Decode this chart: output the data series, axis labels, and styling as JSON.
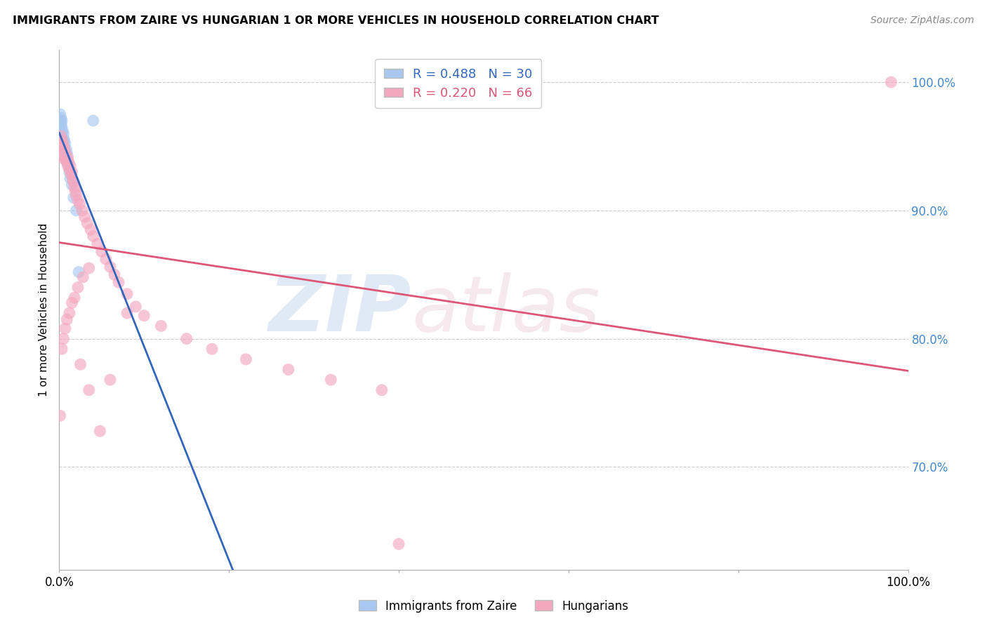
{
  "title": "IMMIGRANTS FROM ZAIRE VS HUNGARIAN 1 OR MORE VEHICLES IN HOUSEHOLD CORRELATION CHART",
  "source": "Source: ZipAtlas.com",
  "ylabel": "1 or more Vehicles in Household",
  "blue_R": 0.488,
  "blue_N": 30,
  "pink_R": 0.22,
  "pink_N": 66,
  "blue_color": "#a8c8f0",
  "pink_color": "#f4a8c0",
  "blue_line_color": "#3366bb",
  "pink_line_color": "#dd5577",
  "xlim": [
    0.0,
    1.0
  ],
  "ylim": [
    0.62,
    1.025
  ],
  "ytick_positions": [
    0.7,
    0.8,
    0.9,
    1.0
  ],
  "ytick_labels": [
    "70.0%",
    "80.0%",
    "90.0%",
    "100.0%"
  ],
  "blue_points_x": [
    0.001,
    0.001,
    0.002,
    0.002,
    0.002,
    0.003,
    0.003,
    0.003,
    0.004,
    0.004,
    0.005,
    0.005,
    0.005,
    0.006,
    0.006,
    0.007,
    0.007,
    0.008,
    0.008,
    0.009,
    0.009,
    0.01,
    0.011,
    0.012,
    0.013,
    0.015,
    0.017,
    0.02,
    0.023,
    0.04
  ],
  "blue_points_y": [
    0.975,
    0.97,
    0.972,
    0.968,
    0.965,
    0.97,
    0.965,
    0.96,
    0.962,
    0.955,
    0.96,
    0.955,
    0.95,
    0.955,
    0.948,
    0.952,
    0.945,
    0.948,
    0.94,
    0.945,
    0.938,
    0.94,
    0.935,
    0.93,
    0.925,
    0.92,
    0.91,
    0.9,
    0.852,
    0.97
  ],
  "pink_points_x": [
    0.001,
    0.002,
    0.002,
    0.003,
    0.003,
    0.004,
    0.004,
    0.005,
    0.005,
    0.006,
    0.006,
    0.007,
    0.008,
    0.009,
    0.01,
    0.01,
    0.011,
    0.012,
    0.013,
    0.014,
    0.015,
    0.016,
    0.017,
    0.018,
    0.019,
    0.02,
    0.022,
    0.024,
    0.027,
    0.03,
    0.033,
    0.037,
    0.04,
    0.045,
    0.05,
    0.055,
    0.06,
    0.065,
    0.07,
    0.08,
    0.09,
    0.1,
    0.12,
    0.15,
    0.18,
    0.22,
    0.27,
    0.32,
    0.38,
    0.98,
    0.003,
    0.005,
    0.007,
    0.009,
    0.012,
    0.015,
    0.018,
    0.022,
    0.028,
    0.035,
    0.025,
    0.035,
    0.048,
    0.06,
    0.08,
    0.4
  ],
  "pink_points_y": [
    0.74,
    0.958,
    0.95,
    0.955,
    0.948,
    0.953,
    0.946,
    0.95,
    0.942,
    0.948,
    0.94,
    0.945,
    0.94,
    0.938,
    0.942,
    0.935,
    0.938,
    0.932,
    0.935,
    0.928,
    0.93,
    0.924,
    0.922,
    0.918,
    0.915,
    0.912,
    0.908,
    0.905,
    0.9,
    0.895,
    0.89,
    0.885,
    0.88,
    0.874,
    0.868,
    0.862,
    0.856,
    0.85,
    0.844,
    0.835,
    0.825,
    0.818,
    0.81,
    0.8,
    0.792,
    0.784,
    0.776,
    0.768,
    0.76,
    1.0,
    0.792,
    0.8,
    0.808,
    0.815,
    0.82,
    0.828,
    0.832,
    0.84,
    0.848,
    0.855,
    0.78,
    0.76,
    0.728,
    0.768,
    0.82,
    0.64
  ]
}
